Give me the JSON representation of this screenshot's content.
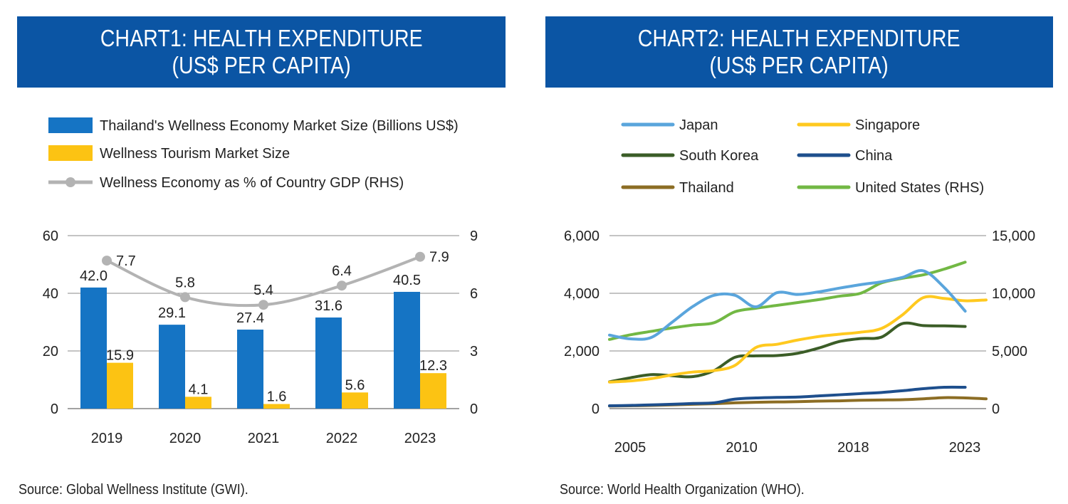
{
  "chart1": {
    "title_line1": "CHART1: HEALTH EXPENDITURE",
    "title_line2": "(US$ PER CAPITA)",
    "source": "Source: Global Wellness Institute (GWI)."
  },
  "chart2": {
    "title_line1": "CHART2: HEALTH EXPENDITURE",
    "title_line2": "(US$ PER CAPITA)",
    "source": "Source: World Health Organization (WHO)."
  },
  "chart_data": [
    {
      "type": "bar",
      "title": "CHART1: HEALTH EXPENDITURE (US$ PER CAPITA)",
      "categories": [
        "2019",
        "2020",
        "2021",
        "2022",
        "2023"
      ],
      "series": [
        {
          "name": "Thailand's Wellness Economy Market Size (Billions US$)",
          "kind": "bar",
          "color": "#1574c4",
          "values": [
            42.0,
            29.1,
            27.4,
            31.6,
            40.5
          ],
          "labels": [
            "42.0",
            "29.1",
            "27.4",
            "31.6",
            "40.5"
          ]
        },
        {
          "name": "Wellness Tourism Market Size",
          "kind": "bar",
          "color": "#fcc313",
          "values": [
            15.9,
            4.1,
            1.6,
            5.6,
            12.3
          ],
          "labels": [
            "15.9",
            "4.1",
            "1.6",
            "5.6",
            "12.3"
          ]
        },
        {
          "name": "Wellness Economy as % of Country GDP (RHS)",
          "kind": "line",
          "axis": "right",
          "color": "#b3b3b3",
          "values": [
            7.7,
            5.8,
            5.4,
            6.4,
            7.9
          ],
          "labels": [
            "7.7",
            "5.8",
            "5.4",
            "6.4",
            "7.9"
          ]
        }
      ],
      "ylim": [
        0,
        60
      ],
      "yticks": [
        "0",
        "20",
        "40",
        "60"
      ],
      "ylim_right": [
        0,
        9
      ],
      "yticks_right": [
        "0",
        "3",
        "6",
        "9"
      ],
      "grid": true,
      "legend": "top-left"
    },
    {
      "type": "line",
      "title": "CHART2: HEALTH EXPENDITURE (US$ PER CAPITA)",
      "x": [
        2005,
        2006,
        2007,
        2008,
        2009,
        2010,
        2011,
        2012,
        2013,
        2014,
        2015,
        2016,
        2017,
        2018,
        2019,
        2020,
        2021,
        2022,
        2023
      ],
      "xticks": [
        "2005",
        "2010",
        "2018",
        "2023"
      ],
      "ylim": [
        0,
        6000
      ],
      "yticks": [
        "0",
        "2,000",
        "4,000",
        "6,000"
      ],
      "ylim_right": [
        0,
        15000
      ],
      "yticks_right": [
        "0",
        "5,000",
        "10,000",
        "15,000"
      ],
      "grid": true,
      "legend": "top",
      "series": [
        {
          "name": "Japan",
          "color": "#5aa5dc",
          "values": [
            2550,
            2420,
            2470,
            3000,
            3550,
            3930,
            3930,
            3530,
            4020,
            3960,
            4050,
            4180,
            4300,
            4400,
            4550,
            4780,
            4200,
            3380,
            null
          ]
        },
        {
          "name": "Singapore",
          "color": "#ffc91f",
          "values": [
            920,
            960,
            1040,
            1170,
            1270,
            1320,
            1500,
            2120,
            2230,
            2380,
            2500,
            2580,
            2650,
            2780,
            3250,
            3850,
            3820,
            3740,
            3770
          ]
        },
        {
          "name": "South Korea",
          "color": "#3b5d27",
          "values": [
            930,
            1070,
            1180,
            1140,
            1110,
            1320,
            1780,
            1830,
            1840,
            1920,
            2100,
            2330,
            2430,
            2480,
            2950,
            2880,
            2870,
            2850,
            null
          ]
        },
        {
          "name": "China",
          "color": "#1e4f8d",
          "values": [
            100,
            110,
            130,
            150,
            180,
            200,
            330,
            370,
            390,
            400,
            440,
            480,
            520,
            560,
            620,
            690,
            740,
            740,
            null
          ]
        },
        {
          "name": "Thailand",
          "color": "#8c6d24",
          "values": [
            90,
            100,
            110,
            130,
            150,
            170,
            200,
            220,
            230,
            240,
            260,
            270,
            290,
            300,
            310,
            340,
            380,
            370,
            340
          ]
        },
        {
          "name": "United States (RHS)",
          "axis": "right",
          "color": "#72b844",
          "values": [
            6000,
            6400,
            6700,
            7000,
            7250,
            7450,
            8400,
            8700,
            8950,
            9200,
            9450,
            9750,
            10000,
            10900,
            11300,
            11600,
            12100,
            12700,
            null
          ]
        }
      ]
    }
  ]
}
